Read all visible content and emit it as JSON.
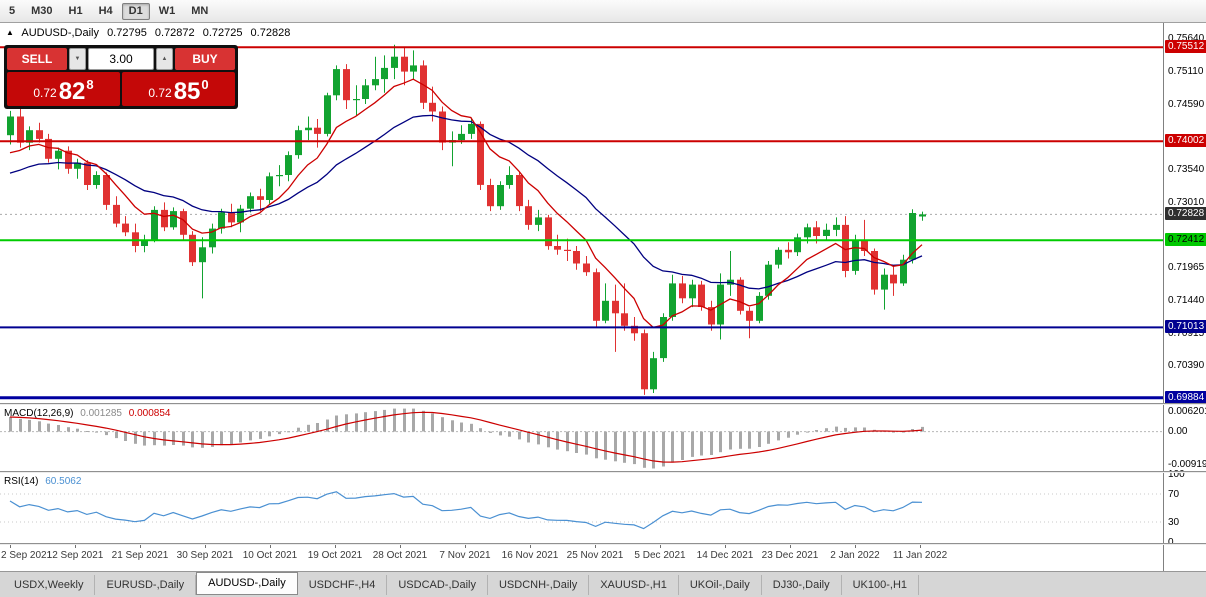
{
  "toolbar": {
    "timeframes": [
      {
        "label": "5",
        "active": false
      },
      {
        "label": "M30",
        "active": false
      },
      {
        "label": "H1",
        "active": false
      },
      {
        "label": "H4",
        "active": false
      },
      {
        "label": "D1",
        "active": true
      },
      {
        "label": "W1",
        "active": false
      },
      {
        "label": "MN",
        "active": false
      }
    ]
  },
  "chart_header": {
    "collapse_icon": "▲",
    "symbol": "AUDUSD-,Daily",
    "open": "0.72795",
    "high": "0.72872",
    "low": "0.72725",
    "close": "0.72828"
  },
  "trade_panel": {
    "sell_label": "SELL",
    "buy_label": "BUY",
    "volume": "3.00",
    "stepper_down": "▼",
    "stepper_up": "▲",
    "sell_price": {
      "prefix": "0.72",
      "big": "82",
      "sup": "8"
    },
    "buy_price": {
      "prefix": "0.72",
      "big": "85",
      "sup": "0"
    }
  },
  "price_axis": {
    "ticks": [
      {
        "price": 0.7564,
        "label": "0.75640"
      },
      {
        "price": 0.7511,
        "label": "0.75110"
      },
      {
        "price": 0.7459,
        "label": "0.74590"
      },
      {
        "price": 0.7354,
        "label": "0.73540"
      },
      {
        "price": 0.7301,
        "label": "0.73010"
      },
      {
        "price": 0.71965,
        "label": "0.71965"
      },
      {
        "price": 0.7144,
        "label": "0.71440"
      },
      {
        "price": 0.70915,
        "label": "0.70915"
      },
      {
        "price": 0.7039,
        "label": "0.70390"
      }
    ],
    "badges": [
      {
        "price": 0.75512,
        "label": "0.75512",
        "bg": "#cc0000",
        "fg": "#ffffff",
        "name": "resistance-upper"
      },
      {
        "price": 0.74002,
        "label": "0.74002",
        "bg": "#cc0000",
        "fg": "#ffffff",
        "name": "resistance-lower"
      },
      {
        "price": 0.72828,
        "label": "0.72828",
        "bg": "#2f2f2f",
        "fg": "#ffffff",
        "name": "current-price"
      },
      {
        "price": 0.72412,
        "label": "0.72412",
        "bg": "#00c800",
        "fg": "#000000",
        "name": "support-green"
      },
      {
        "price": 0.71013,
        "label": "0.71013",
        "bg": "#000090",
        "fg": "#ffffff",
        "name": "support-navy-upper"
      },
      {
        "price": 0.69884,
        "label": "0.69884",
        "bg": "#0000a0",
        "fg": "#ffffff",
        "name": "support-navy-lower"
      }
    ]
  },
  "hlines": [
    {
      "price": 0.75512,
      "color": "#cc0000",
      "width": 2
    },
    {
      "price": 0.74002,
      "color": "#cc0000",
      "width": 2
    },
    {
      "price": 0.72412,
      "color": "#00cc00",
      "width": 2
    },
    {
      "price": 0.71013,
      "color": "#000090",
      "width": 2
    },
    {
      "price": 0.69884,
      "color": "#0000a0",
      "width": 3
    }
  ],
  "bid_line": {
    "price": 0.72828,
    "color": "#aaaaaa"
  },
  "chart_data": {
    "type": "candlestick",
    "symbol": "AUDUSD-",
    "timeframe": "Daily",
    "price_top": 0.7574,
    "price_bottom": 0.698,
    "up_color": "#12a330",
    "down_color": "#e03232",
    "ma_fast_period": 8,
    "ma_slow_period": 21,
    "ma_fast_color": "#cc0000",
    "ma_slow_color": "#000080",
    "ma_fast_seed": 0.7365,
    "ma_slow_seed": 0.734,
    "macd_seed_fast": 0.742,
    "macd_seed_slow": 0.7385,
    "rsi_seed_gain": 0.0012,
    "rsi_seed_loss": 0.0008,
    "candles": [
      [
        0.741,
        0.7449,
        0.7395,
        0.744
      ],
      [
        0.744,
        0.7452,
        0.739,
        0.7398
      ],
      [
        0.7398,
        0.7424,
        0.7386,
        0.7418
      ],
      [
        0.7418,
        0.743,
        0.7398,
        0.7404
      ],
      [
        0.7404,
        0.7412,
        0.7366,
        0.7372
      ],
      [
        0.7372,
        0.739,
        0.7355,
        0.7385
      ],
      [
        0.7385,
        0.7392,
        0.7348,
        0.7356
      ],
      [
        0.7356,
        0.7372,
        0.734,
        0.7366
      ],
      [
        0.7366,
        0.737,
        0.7322,
        0.733
      ],
      [
        0.733,
        0.7352,
        0.7324,
        0.7346
      ],
      [
        0.7346,
        0.735,
        0.729,
        0.7298
      ],
      [
        0.7298,
        0.7312,
        0.7262,
        0.7268
      ],
      [
        0.7268,
        0.728,
        0.7248,
        0.7254
      ],
      [
        0.7254,
        0.7268,
        0.7222,
        0.7232
      ],
      [
        0.7232,
        0.725,
        0.7222,
        0.724
      ],
      [
        0.724,
        0.7296,
        0.7238,
        0.729
      ],
      [
        0.729,
        0.7302,
        0.7256,
        0.7262
      ],
      [
        0.7262,
        0.7294,
        0.7258,
        0.7288
      ],
      [
        0.7288,
        0.7292,
        0.7242,
        0.725
      ],
      [
        0.725,
        0.7256,
        0.72,
        0.7206
      ],
      [
        0.7206,
        0.7246,
        0.7148,
        0.723
      ],
      [
        0.723,
        0.7268,
        0.722,
        0.726
      ],
      [
        0.726,
        0.7292,
        0.7252,
        0.7286
      ],
      [
        0.7286,
        0.73,
        0.7262,
        0.727
      ],
      [
        0.727,
        0.7298,
        0.7254,
        0.7292
      ],
      [
        0.7292,
        0.7318,
        0.7286,
        0.7312
      ],
      [
        0.7312,
        0.7324,
        0.7288,
        0.7306
      ],
      [
        0.7306,
        0.735,
        0.73,
        0.7344
      ],
      [
        0.7344,
        0.7362,
        0.7328,
        0.7346
      ],
      [
        0.7346,
        0.7384,
        0.7336,
        0.7378
      ],
      [
        0.7378,
        0.7425,
        0.7372,
        0.7418
      ],
      [
        0.7418,
        0.744,
        0.7402,
        0.7422
      ],
      [
        0.7422,
        0.7436,
        0.739,
        0.7412
      ],
      [
        0.7412,
        0.7478,
        0.7408,
        0.7474
      ],
      [
        0.7474,
        0.7522,
        0.7466,
        0.7516
      ],
      [
        0.7516,
        0.7524,
        0.7452,
        0.7466
      ],
      [
        0.7466,
        0.749,
        0.7442,
        0.7468
      ],
      [
        0.7468,
        0.75,
        0.746,
        0.749
      ],
      [
        0.749,
        0.7536,
        0.7482,
        0.75
      ],
      [
        0.75,
        0.7538,
        0.7478,
        0.7518
      ],
      [
        0.7518,
        0.7555,
        0.75,
        0.7536
      ],
      [
        0.7536,
        0.755,
        0.749,
        0.7512
      ],
      [
        0.7512,
        0.7546,
        0.75,
        0.7522
      ],
      [
        0.7522,
        0.753,
        0.7452,
        0.7462
      ],
      [
        0.7462,
        0.7488,
        0.7432,
        0.7448
      ],
      [
        0.7448,
        0.7456,
        0.7386,
        0.7398
      ],
      [
        0.7398,
        0.7416,
        0.736,
        0.7402
      ],
      [
        0.7402,
        0.7426,
        0.7396,
        0.7412
      ],
      [
        0.7412,
        0.7438,
        0.7404,
        0.7428
      ],
      [
        0.7428,
        0.7432,
        0.7322,
        0.733
      ],
      [
        0.733,
        0.734,
        0.7288,
        0.7296
      ],
      [
        0.7296,
        0.7336,
        0.729,
        0.733
      ],
      [
        0.733,
        0.736,
        0.7324,
        0.7346
      ],
      [
        0.7346,
        0.735,
        0.7288,
        0.7296
      ],
      [
        0.7296,
        0.7306,
        0.7258,
        0.7266
      ],
      [
        0.7266,
        0.729,
        0.7256,
        0.7278
      ],
      [
        0.7278,
        0.7282,
        0.7226,
        0.7232
      ],
      [
        0.7232,
        0.725,
        0.7218,
        0.7226
      ],
      [
        0.7226,
        0.7244,
        0.7208,
        0.7224
      ],
      [
        0.7224,
        0.7232,
        0.7194,
        0.7204
      ],
      [
        0.7204,
        0.7216,
        0.7184,
        0.719
      ],
      [
        0.719,
        0.7196,
        0.7102,
        0.7112
      ],
      [
        0.7112,
        0.7172,
        0.7108,
        0.7144
      ],
      [
        0.7144,
        0.717,
        0.7062,
        0.7124
      ],
      [
        0.7124,
        0.7172,
        0.7096,
        0.7104
      ],
      [
        0.7104,
        0.7118,
        0.708,
        0.7092
      ],
      [
        0.7092,
        0.7098,
        0.6993,
        0.7002
      ],
      [
        0.7002,
        0.7062,
        0.6996,
        0.7052
      ],
      [
        0.7052,
        0.7124,
        0.7046,
        0.7118
      ],
      [
        0.7118,
        0.7186,
        0.7112,
        0.7172
      ],
      [
        0.7172,
        0.7184,
        0.714,
        0.7148
      ],
      [
        0.7148,
        0.7178,
        0.7134,
        0.717
      ],
      [
        0.717,
        0.7176,
        0.7128,
        0.7134
      ],
      [
        0.7134,
        0.7144,
        0.7096,
        0.7106
      ],
      [
        0.7106,
        0.7188,
        0.7082,
        0.717
      ],
      [
        0.717,
        0.7224,
        0.7152,
        0.7178
      ],
      [
        0.7178,
        0.7182,
        0.7122,
        0.7128
      ],
      [
        0.7128,
        0.7134,
        0.7084,
        0.7112
      ],
      [
        0.7112,
        0.7158,
        0.7108,
        0.7152
      ],
      [
        0.7152,
        0.7208,
        0.7146,
        0.7202
      ],
      [
        0.7202,
        0.723,
        0.7196,
        0.7226
      ],
      [
        0.7226,
        0.7238,
        0.7212,
        0.7222
      ],
      [
        0.7222,
        0.7252,
        0.7216,
        0.7246
      ],
      [
        0.7246,
        0.7268,
        0.7236,
        0.7262
      ],
      [
        0.7262,
        0.7272,
        0.7236,
        0.7248
      ],
      [
        0.7248,
        0.7268,
        0.724,
        0.7258
      ],
      [
        0.7258,
        0.7278,
        0.7248,
        0.7266
      ],
      [
        0.7266,
        0.728,
        0.7182,
        0.7192
      ],
      [
        0.7192,
        0.725,
        0.7186,
        0.724
      ],
      [
        0.724,
        0.7274,
        0.7216,
        0.7224
      ],
      [
        0.7224,
        0.7228,
        0.7154,
        0.7162
      ],
      [
        0.7162,
        0.7196,
        0.713,
        0.7186
      ],
      [
        0.7186,
        0.72,
        0.7152,
        0.7172
      ],
      [
        0.7172,
        0.7218,
        0.7168,
        0.721
      ],
      [
        0.721,
        0.7291,
        0.7204,
        0.7285
      ],
      [
        0.72795,
        0.72872,
        0.72725,
        0.72828
      ]
    ]
  },
  "macd_panel": {
    "title": "MACD(12,26,9)",
    "value_main": "0.001285",
    "value_signal": "0.000854",
    "hist_color": "#a8a8a8",
    "signal_color": "#cc0000",
    "axis": {
      "max": 0.006201,
      "min": -0.00919,
      "max_label": "0.006201",
      "zero_label": "0.00",
      "min_label": "-0.00919"
    }
  },
  "rsi_panel": {
    "title": "RSI(14)",
    "value": "60.5062",
    "line_color": "#4a90d2",
    "levels": [
      70,
      30
    ],
    "axis_labels": [
      {
        "v": 100,
        "label": "100"
      },
      {
        "v": 70,
        "label": "70"
      },
      {
        "v": 30,
        "label": "30"
      },
      {
        "v": 0,
        "label": "0"
      }
    ]
  },
  "time_axis": {
    "labels": [
      "2 Sep 2021",
      "12 Sep 2021",
      "21 Sep 2021",
      "30 Sep 2021",
      "10 Oct 2021",
      "19 Oct 2021",
      "28 Oct 2021",
      "7 Nov 2021",
      "16 Nov 2021",
      "25 Nov 2021",
      "5 Dec 2021",
      "14 Dec 2021",
      "23 Dec 2021",
      "2 Jan 2022",
      "11 Jan 2022"
    ]
  },
  "tabs": {
    "active_index": 2,
    "items": [
      "USDX,Weekly",
      "EURUSD-,Daily",
      "AUDUSD-,Daily",
      "USDCHF-,H4",
      "USDCAD-,Daily",
      "USDCNH-,Daily",
      "XAUUSD-,H1",
      "UKOil-,Daily",
      "DJ30-,Daily",
      "UK100-,H1"
    ]
  }
}
